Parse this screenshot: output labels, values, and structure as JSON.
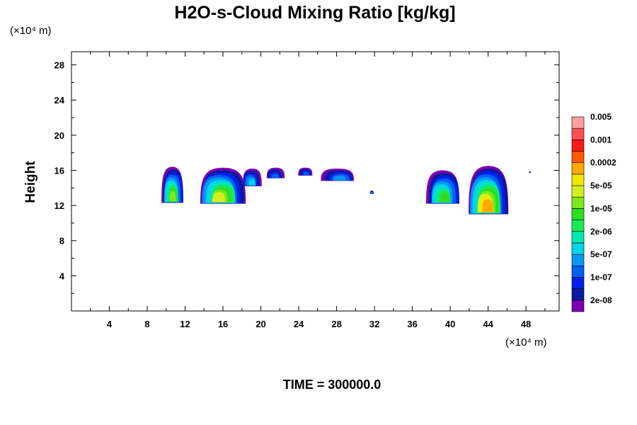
{
  "chart_data": {
    "type": "heatmap",
    "title": "H2O-s-Cloud Mixing Ratio [kg/kg]",
    "xlabel": "",
    "ylabel": "Height",
    "x_unit": "(×10⁴ m)",
    "y_unit": "(×10⁴ m)",
    "xlim": [
      0,
      51.5
    ],
    "ylim": [
      0,
      29.5
    ],
    "xticks": [
      4,
      8,
      12,
      16,
      20,
      24,
      28,
      32,
      36,
      40,
      44,
      48
    ],
    "yticks": [
      4,
      8,
      12,
      16,
      20,
      24,
      28
    ],
    "grid": false,
    "colorbar": {
      "position": "right",
      "colors": [
        "#7a00b0",
        "#0a1a9e",
        "#0020e8",
        "#0060f0",
        "#0898f4",
        "#00d4ea",
        "#00e8b0",
        "#1ae85a",
        "#2ede22",
        "#7ee81c",
        "#d2f020",
        "#f0e800",
        "#ffa800",
        "#ff5a00",
        "#ff1a1a",
        "#ff5050",
        "#ff9e9e"
      ],
      "labels": [
        "2e-08",
        "1e-07",
        "5e-07",
        "2e-06",
        "1e-05",
        "5e-05",
        "0.0002",
        "0.001",
        "0.005"
      ]
    },
    "cloud_regions": [
      {
        "x": [
          9.5,
          11.8
        ],
        "y": [
          12.3,
          16.4
        ],
        "max_level": 9
      },
      {
        "x": [
          13.4,
          18.2
        ],
        "y": [
          12.2,
          16.3
        ],
        "max_level": 10
      },
      {
        "x": [
          18.0,
          20.0
        ],
        "y": [
          14.2,
          16.2
        ],
        "max_level": 5
      },
      {
        "x": [
          20.6,
          22.5
        ],
        "y": [
          15.1,
          16.3
        ],
        "max_level": 3
      },
      {
        "x": [
          24.0,
          25.5
        ],
        "y": [
          15.4,
          16.3
        ],
        "max_level": 3
      },
      {
        "x": [
          26.5,
          30.0
        ],
        "y": [
          14.8,
          16.2
        ],
        "max_level": 4
      },
      {
        "x": [
          37.5,
          41.0
        ],
        "y": [
          12.2,
          16.0
        ],
        "max_level": 8
      },
      {
        "x": [
          41.8,
          46.0
        ],
        "y": [
          11.0,
          16.5
        ],
        "max_level": 12
      },
      {
        "x": [
          31.5,
          31.9
        ],
        "y": [
          13.3,
          13.7
        ],
        "max_level": 5
      },
      {
        "x": [
          48.3,
          48.5
        ],
        "y": [
          15.7,
          15.9
        ],
        "max_level": 1
      }
    ],
    "annotations": [
      "TIME = 300000.0"
    ]
  }
}
